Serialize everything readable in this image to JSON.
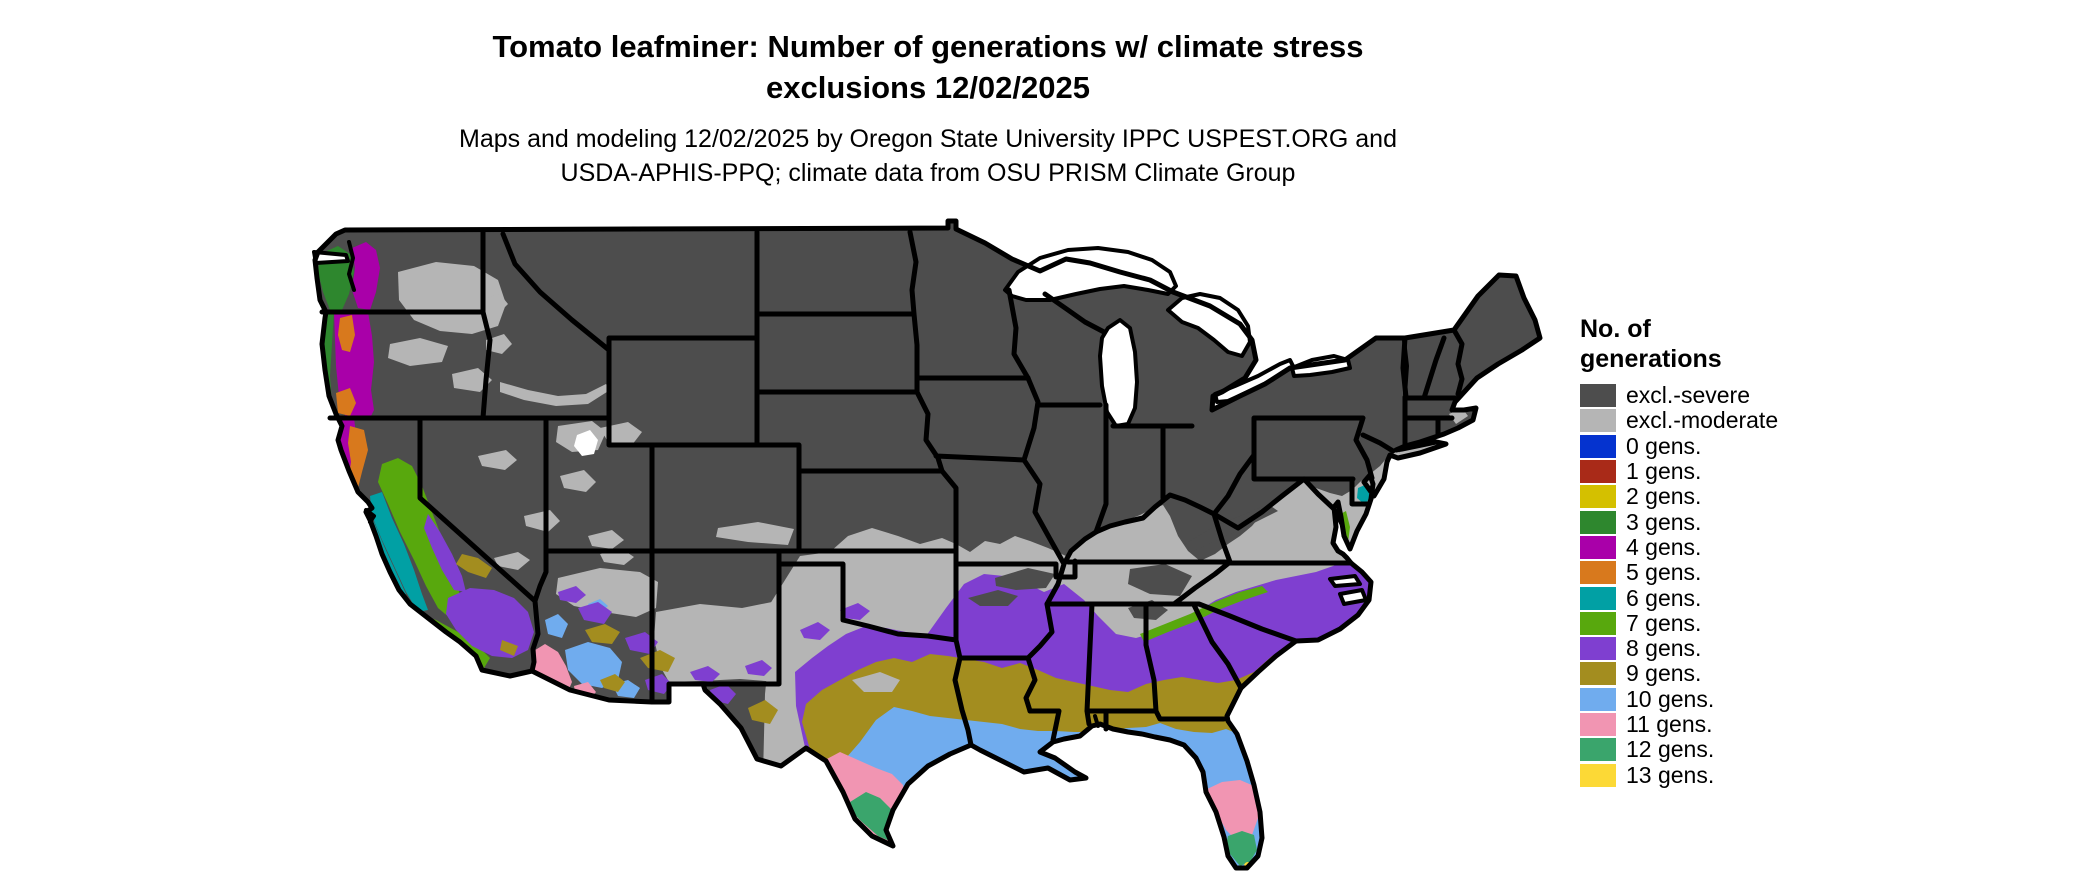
{
  "title": {
    "line1": "Tomato leafminer: Number of generations w/ climate stress",
    "line2": "exclusions 12/02/2025"
  },
  "subtitle": {
    "line1": "Maps and modeling 12/02/2025 by Oregon State University IPPC USPEST.ORG and",
    "line2": "USDA-APHIS-PPQ; climate data from OSU PRISM Climate Group"
  },
  "legend": {
    "title_line1": "No. of",
    "title_line2": "generations",
    "items": [
      {
        "label": "excl.-severe",
        "palette_key": "severe"
      },
      {
        "label": "excl.-moderate",
        "palette_key": "moderate"
      },
      {
        "label": "0 gens.",
        "palette_key": "g0"
      },
      {
        "label": "1 gens.",
        "palette_key": "g1"
      },
      {
        "label": "2 gens.",
        "palette_key": "g2"
      },
      {
        "label": "3 gens.",
        "palette_key": "g3"
      },
      {
        "label": "4 gens.",
        "palette_key": "g4"
      },
      {
        "label": "5 gens.",
        "palette_key": "g5"
      },
      {
        "label": "6 gens.",
        "palette_key": "g6"
      },
      {
        "label": "7 gens.",
        "palette_key": "g7"
      },
      {
        "label": "8 gens.",
        "palette_key": "g8"
      },
      {
        "label": "9 gens.",
        "palette_key": "g9"
      },
      {
        "label": "10 gens.",
        "palette_key": "g10"
      },
      {
        "label": "11 gens.",
        "palette_key": "g11"
      },
      {
        "label": "12 gens.",
        "palette_key": "g12"
      },
      {
        "label": "13 gens.",
        "palette_key": "g13"
      }
    ]
  },
  "map": {
    "palette": {
      "severe": "#4d4d4d",
      "moderate": "#b5b5b5",
      "g0": "#0533cf",
      "g1": "#a92a18",
      "g2": "#d4c000",
      "g3": "#2e872e",
      "g4": "#a900a9",
      "g5": "#d8791d",
      "g6": "#01a0a4",
      "g7": "#58a80d",
      "g8": "#7f3fd0",
      "g9": "#a38d1f",
      "g10": "#70acee",
      "g11": "#f195b2",
      "g12": "#3aa56c",
      "g13": "#fcd936",
      "water": "#ffffff"
    },
    "border_color": "#000000"
  }
}
